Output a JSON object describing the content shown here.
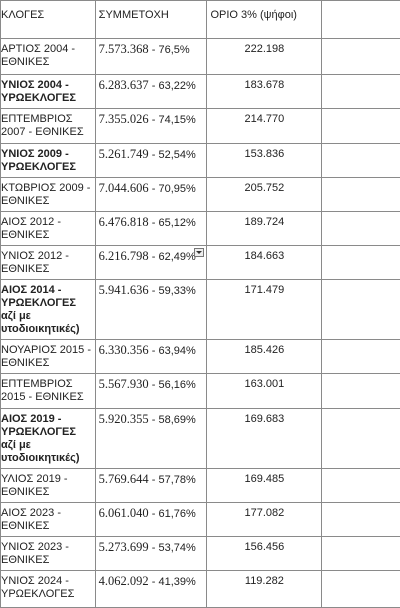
{
  "table": {
    "header": [
      "ΚΛΟΓΕΣ",
      "ΣΥΜΜΕΤΟΧΗ",
      "ΟΡΙΟ 3% (ψήφοι)"
    ],
    "rows": [
      {
        "election": "ΑΡΤΙΟΣ 2004 - ΕΘΝΙΚΕΣ",
        "turnout": "7.573.368",
        "turnout_percent": "- 76,5%",
        "threshold": "222.198"
      },
      {
        "election": "ΥΝΙΟΣ 2004 - ΥΡΩΕΚΛΟΓΕΣ",
        "turnout": "6.283.637",
        "turnout_percent": "- 63,22%",
        "threshold": "183.678",
        "bold": true
      },
      {
        "election": "ΕΠΤΕΜΒΡΙΟΣ 2007 - ΕΘΝΙΚΕΣ",
        "turnout": "7.355.026",
        "turnout_percent": "- 74,15%",
        "threshold": "214.770"
      },
      {
        "election": "ΥΝΙΟΣ 2009 - ΥΡΩΕΚΛΟΓΕΣ",
        "turnout": "5.261.749",
        "turnout_percent": "- 52,54%",
        "threshold": "153.836",
        "bold": true
      },
      {
        "election": "ΚΤΩΒΡΙΟΣ 2009 - ΕΘΝΙΚΕΣ",
        "turnout": "7.044.606",
        "turnout_percent": "- 70,95%",
        "threshold": "205.752"
      },
      {
        "election": "ΑΙΟΣ 2012 - ΕΘΝΙΚΕΣ",
        "turnout": "6.476.818",
        "turnout_percent": "- 65,12%",
        "threshold": "189.724"
      },
      {
        "election": "ΥΝΙΟΣ 2012 - ΕΘΝΙΚΕΣ",
        "turnout": "6.216.798",
        "turnout_percent": "- 62,49%",
        "threshold": "184.663",
        "dropdown": true
      },
      {
        "election": "ΑΙΟΣ 2014 - ΥΡΩΕΚΛΟΓΕΣ αζί με υτοδιοικητικές)",
        "turnout": "5.941.636",
        "turnout_percent": "- 59,33%",
        "threshold": "171.479",
        "bold": true
      },
      {
        "election": "ΝΟΥΑΡΙΟΣ 2015 - ΕΘΝΙΚΕΣ",
        "turnout": "6.330.356",
        "turnout_percent": "- 63,94%",
        "threshold": "185.426"
      },
      {
        "election": "ΕΠΤΕΜΒΡΙΟΣ 2015 - ΕΘΝΙΚΕΣ",
        "turnout": "5.567.930",
        "turnout_percent": "- 56,16%",
        "threshold": "163.001"
      },
      {
        "election": "ΑΙΟΣ 2019 - ΥΡΩΕΚΛΟΓΕΣ αζί με υτοδιοικητικές)",
        "turnout": "5.920.355",
        "turnout_percent": "- 58,69%",
        "threshold": "169.683",
        "bold": true
      },
      {
        "election": "ΥΛΙΟΣ 2019 - ΕΘΝΙΚΕΣ",
        "turnout": "5.769.644",
        "turnout_percent": "- 57,78%",
        "threshold": "169.485"
      },
      {
        "election": "ΑΙΟΣ 2023 - ΕΘΝΙΚΕΣ",
        "turnout": "6.061.040",
        "turnout_percent": "- 61,76%",
        "threshold": "177.082"
      },
      {
        "election": "ΥΝΙΟΣ 2023 - ΕΘΝΙΚΕΣ",
        "turnout": "5.273.699",
        "turnout_percent": "- 53,74%",
        "threshold": "156.456"
      },
      {
        "election": "ΥΝΙΟΣ 2024 - ΥΡΩΕΚΛΟΓΕΣ",
        "turnout": "4.062.092",
        "turnout_percent": "- 41,39%",
        "threshold": "119.282"
      }
    ]
  }
}
